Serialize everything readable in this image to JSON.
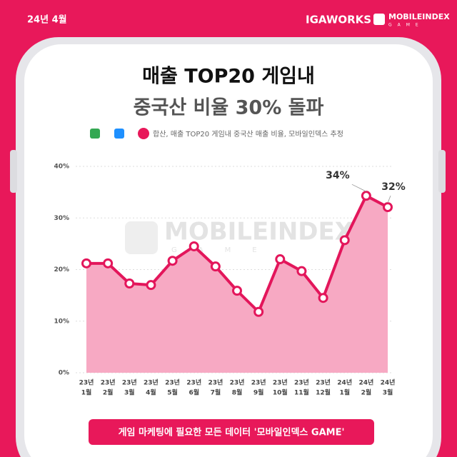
{
  "header": {
    "date": "24년 4월",
    "brand": "IGAWORKS",
    "logo": "MOBILEINDEX",
    "logo_sub": "GAME"
  },
  "chart_data": {
    "type": "area-line",
    "title": [
      "매출 TOP20 게임내",
      "중국산 비율 30% 돌파"
    ],
    "subtitle": "합산, 매출 TOP20 게임내 중국산 매출 비율, 모바일인덱스 추정",
    "watermark": [
      "MOBILEINDEX",
      "GAME"
    ],
    "categories": [
      [
        "23년",
        "1월"
      ],
      [
        "23년",
        "2월"
      ],
      [
        "23년",
        "3월"
      ],
      [
        "23년",
        "4월"
      ],
      [
        "23년",
        "5월"
      ],
      [
        "23년",
        "6월"
      ],
      [
        "23년",
        "7월"
      ],
      [
        "23년",
        "8월"
      ],
      [
        "23년",
        "9월"
      ],
      [
        "23년",
        "10월"
      ],
      [
        "23년",
        "11월"
      ],
      [
        "23년",
        "12월"
      ],
      [
        "24년",
        "1월"
      ],
      [
        "24년",
        "2월"
      ],
      [
        "24년",
        "3월"
      ]
    ],
    "values": [
      21.2,
      21.2,
      17.3,
      17.0,
      21.7,
      24.5,
      20.6,
      15.9,
      11.8,
      22.0,
      19.7,
      14.5,
      25.7,
      34.3,
      32.1
    ],
    "value_labels": [
      null,
      null,
      null,
      null,
      null,
      null,
      null,
      null,
      null,
      null,
      null,
      null,
      null,
      "34%",
      "32%"
    ],
    "color": "#e3165b",
    "fill": "#f7a9c3",
    "ylim": [
      0,
      40
    ],
    "yticks": [
      {
        "value": 0,
        "label": "0%"
      },
      {
        "value": 10,
        "label": "10%"
      },
      {
        "value": 20,
        "label": "20%"
      },
      {
        "value": 30,
        "label": "30%"
      },
      {
        "value": 40,
        "label": "40%"
      }
    ],
    "grid": true
  },
  "footer": "게임 마케팅에 필요한 모든 데이터 '모바일인덱스 GAME'"
}
